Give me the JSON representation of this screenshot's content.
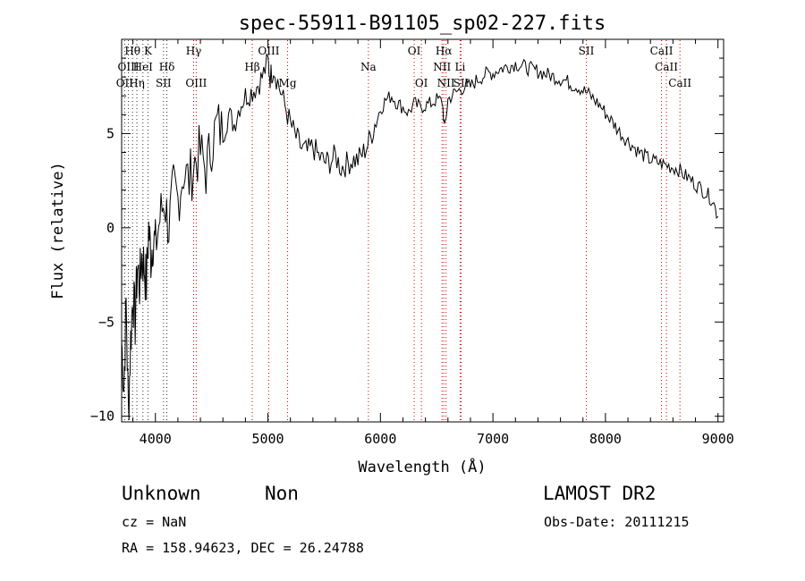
{
  "chart_data": {
    "type": "line",
    "title": "spec-55911-B91105_sp02-227.fits",
    "xlabel": "Wavelength (Å)",
    "ylabel": "Flux (relative)",
    "xlim": [
      3700,
      9050
    ],
    "ylim": [
      -10.3,
      10
    ],
    "xticks": [
      4000,
      5000,
      6000,
      7000,
      8000,
      9000
    ],
    "yticks": [
      -10,
      -5,
      0,
      5
    ],
    "ytick_labels": [
      "−10",
      "−5",
      "0",
      "5"
    ],
    "series": [
      {
        "x": [
          3700,
          3720,
          3740,
          3760,
          3780,
          3800,
          3820,
          3840,
          3860,
          3880,
          3900,
          3920,
          3940,
          3960,
          3980,
          4000,
          4040,
          4080,
          4120,
          4160,
          4200,
          4250,
          4300,
          4350,
          4400,
          4450,
          4500,
          4550,
          4600,
          4650,
          4700,
          4750,
          4800,
          4850,
          4900,
          4950,
          5000,
          5020,
          5050,
          5100,
          5150,
          5200,
          5250,
          5300,
          5350,
          5400,
          5450,
          5500,
          5550,
          5600,
          5650,
          5700,
          5750,
          5800,
          5850,
          5900,
          5950,
          6000,
          6050,
          6100,
          6150,
          6200,
          6250,
          6300,
          6350,
          6400,
          6450,
          6500,
          6550,
          6570,
          6600,
          6650,
          6700,
          6750,
          6800,
          6850,
          6900,
          6950,
          7000,
          7050,
          7100,
          7150,
          7200,
          7250,
          7300,
          7350,
          7400,
          7450,
          7500,
          7550,
          7600,
          7650,
          7700,
          7750,
          7800,
          7850,
          7900,
          7950,
          8000,
          8050,
          8100,
          8150,
          8200,
          8250,
          8300,
          8350,
          8400,
          8450,
          8500,
          8550,
          8600,
          8650,
          8700,
          8750,
          8800,
          8850,
          8900,
          8950,
          9000
        ],
        "y": [
          -6,
          -8.5,
          -4,
          -9.8,
          -6,
          -3.5,
          -5,
          -2,
          -3,
          -1.5,
          -2,
          -3,
          0,
          -1.5,
          -0.5,
          -1,
          0.5,
          1.5,
          0,
          2,
          1.5,
          3,
          2.5,
          3.5,
          4,
          3,
          4.5,
          5.5,
          5,
          6,
          5.5,
          6.5,
          7,
          7.2,
          7.5,
          8,
          8.8,
          8,
          8.5,
          7.5,
          6.5,
          5.5,
          4.8,
          4.2,
          4,
          4.3,
          3.8,
          3.5,
          3.5,
          3.8,
          3.2,
          3.4,
          3.6,
          3.6,
          4,
          4.6,
          5.5,
          6.3,
          6.8,
          7,
          6.6,
          6.4,
          6.1,
          6.6,
          6.4,
          6.5,
          6.6,
          6.8,
          6.7,
          5.2,
          6.8,
          7.1,
          7.3,
          7.5,
          7.5,
          7.8,
          8,
          8.2,
          8.2,
          8.4,
          8.5,
          8.6,
          8.7,
          8.6,
          8.5,
          8.4,
          8.3,
          8.2,
          8.1,
          8,
          7.9,
          7.8,
          7.6,
          7.5,
          7.3,
          7.1,
          6.8,
          6.5,
          6.1,
          5.7,
          5.3,
          4.9,
          4.6,
          4.3,
          4,
          3.8,
          3.6,
          3.5,
          3.4,
          3.3,
          3.2,
          3.1,
          2.8,
          2.6,
          2.3,
          2.1,
          1.8,
          1.5,
          0.6
        ]
      }
    ],
    "spectral_lines": [
      {
        "label": "Hθ",
        "x": 3797,
        "row": 1,
        "color": "#333333"
      },
      {
        "label": "K",
        "x": 3934,
        "row": 1,
        "color": "#333333"
      },
      {
        "label": "OIII",
        "x": 3760,
        "row": 2,
        "color": "#333333"
      },
      {
        "label": "HeI",
        "x": 3889,
        "row": 2,
        "color": "#333333"
      },
      {
        "label": "Hδ",
        "x": 4102,
        "row": 2,
        "color": "#333333"
      },
      {
        "label": "OII",
        "x": 3727,
        "row": 3,
        "color": "#333333"
      },
      {
        "label": "Hη",
        "x": 3835,
        "row": 3,
        "color": "#333333"
      },
      {
        "label": "SII",
        "x": 4072,
        "row": 3,
        "color": "#333333"
      },
      {
        "label": "Hγ",
        "x": 4340,
        "row": 1,
        "color": "#cc0000"
      },
      {
        "label": "OIII",
        "x": 4363,
        "row": 3,
        "color": "#cc0000"
      },
      {
        "label": "Hβ",
        "x": 4861,
        "row": 2,
        "color": "#cc0000"
      },
      {
        "label": "OIII",
        "x": 5007,
        "row": 1,
        "color": "#cc0000"
      },
      {
        "label": "Mg",
        "x": 5175,
        "row": 3,
        "color": "#cc0000"
      },
      {
        "label": "Na",
        "x": 5893,
        "row": 2,
        "color": "#cc0000"
      },
      {
        "label": "OI",
        "x": 6300,
        "row": 1,
        "color": "#cc0000"
      },
      {
        "label": "OI",
        "x": 6364,
        "row": 3,
        "color": "#cc0000"
      },
      {
        "label": "Hα",
        "x": 6563,
        "row": 1,
        "color": "#cc0000"
      },
      {
        "label": "NII",
        "x": 6548,
        "row": 2,
        "color": "#cc0000"
      },
      {
        "label": "NII",
        "x": 6583,
        "row": 3,
        "color": "#cc0000"
      },
      {
        "label": "Li",
        "x": 6708,
        "row": 2,
        "color": "#cc0000"
      },
      {
        "label": "SII",
        "x": 6717,
        "row": 3,
        "color": "#cc0000"
      },
      {
        "label": "SII",
        "x": 7830,
        "row": 1,
        "color": "#cc0000"
      },
      {
        "label": "CaII",
        "x": 8498,
        "row": 1,
        "color": "#cc0000"
      },
      {
        "label": "CaII",
        "x": 8542,
        "row": 2,
        "color": "#cc0000"
      },
      {
        "label": "CaII",
        "x": 8662,
        "row": 3,
        "color": "#cc0000"
      }
    ]
  },
  "info": {
    "class_label": "Unknown",
    "subclass_label": "Non",
    "survey": "LAMOST DR2",
    "cz": "cz = NaN",
    "obs_date": "Obs-Date: 20111215",
    "coords": "RA = 158.94623, DEC =  26.24788"
  }
}
